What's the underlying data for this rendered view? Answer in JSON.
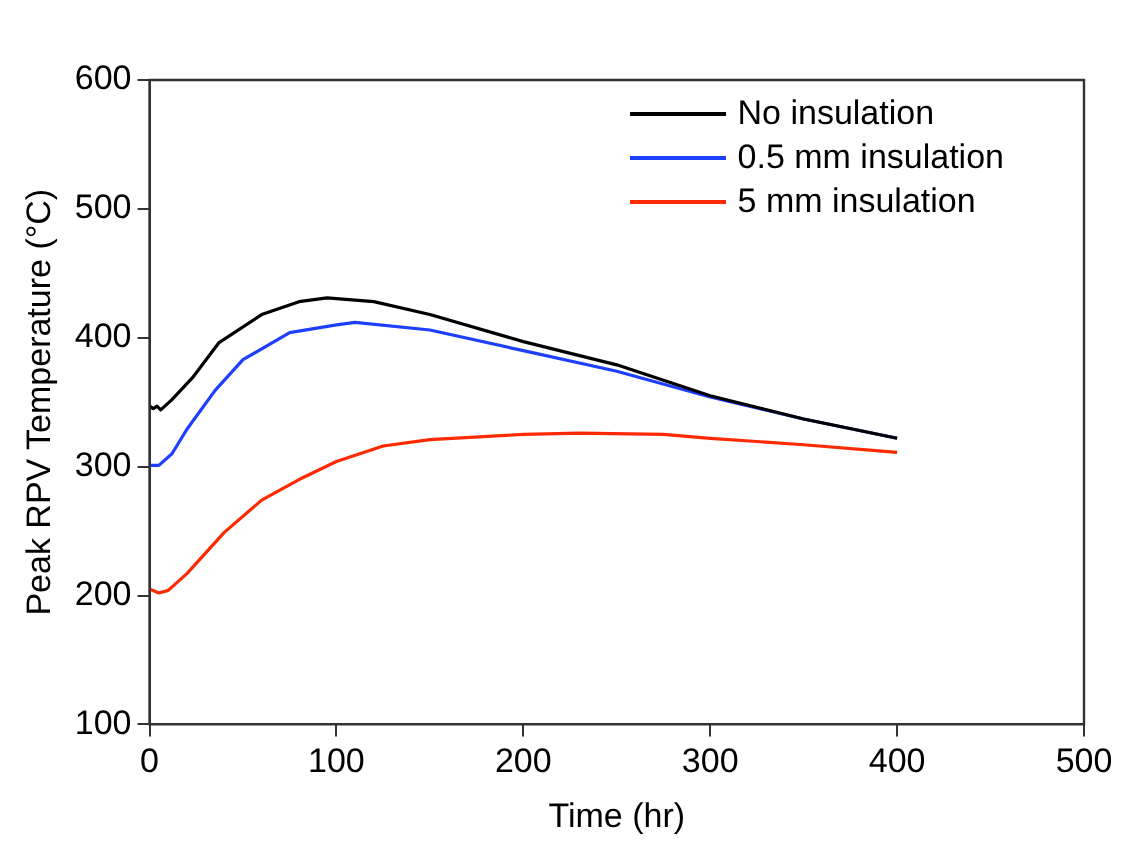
{
  "chart_data": {
    "type": "line",
    "xlabel": "Time (hr)",
    "ylabel": "Peak RPV Temperature (°C)",
    "xlim": [
      0,
      500
    ],
    "xticks": [
      0,
      100,
      200,
      300,
      400,
      500
    ],
    "ylim": [
      100,
      600
    ],
    "yticks": [
      100,
      200,
      300,
      400,
      500,
      600
    ],
    "grid": false,
    "legend": "top right",
    "marker": "none",
    "line_style": "solid",
    "series": [
      {
        "name": "No insulation",
        "color": "#000000",
        "x": [
          0,
          2,
          4,
          6,
          12,
          23,
          37,
          60,
          80,
          95,
          120,
          150,
          200,
          250,
          300,
          350,
          400
        ],
        "values": [
          347,
          345,
          347,
          344,
          352,
          369,
          396,
          418,
          428,
          431,
          428,
          418,
          397,
          379,
          355,
          337,
          322
        ]
      },
      {
        "name": "0.5 mm insulation",
        "color": "#1f3fff",
        "x": [
          0,
          5,
          12,
          20,
          35,
          50,
          75,
          100,
          110,
          150,
          200,
          250,
          300,
          350,
          400
        ],
        "values": [
          301,
          301,
          310,
          329,
          359,
          383,
          404,
          410,
          412,
          406,
          390,
          374,
          354,
          337,
          322
        ]
      },
      {
        "name": "5 mm insulation",
        "color": "#ff2a00",
        "x": [
          0,
          5,
          10,
          20,
          40,
          60,
          80,
          100,
          125,
          150,
          200,
          230,
          275,
          300,
          350,
          400
        ],
        "values": [
          205,
          202,
          204,
          217,
          249,
          274,
          290,
          304,
          316,
          321,
          325,
          326,
          325,
          322,
          317,
          311
        ]
      }
    ]
  }
}
